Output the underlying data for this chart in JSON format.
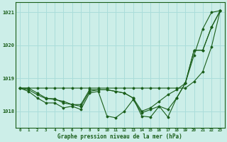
{
  "title": "Graphe pression niveau de la mer (hPa)",
  "bg_color": "#cceee8",
  "grid_color": "#aaddda",
  "line_color": "#1a5e1a",
  "xlim": [
    -0.5,
    23.5
  ],
  "ylim": [
    1017.5,
    1021.3
  ],
  "yticks": [
    1018,
    1019,
    1020,
    1021
  ],
  "xtick_labels": [
    "0",
    "1",
    "2",
    "3",
    "4",
    "5",
    "6",
    "7",
    "8",
    "9",
    "10",
    "11",
    "12",
    "13",
    "14",
    "15",
    "16",
    "17",
    "18",
    "19",
    "20",
    "21",
    "22",
    "23"
  ],
  "series": [
    [
      1018.7,
      1018.7,
      1018.55,
      1018.4,
      1018.35,
      1018.3,
      1018.2,
      1018.2,
      1018.65,
      1018.65,
      1018.65,
      1018.6,
      1018.55,
      1018.4,
      1017.85,
      1017.82,
      1018.15,
      1017.82,
      1018.4,
      1018.85,
      1019.7,
      1020.5,
      1021.0,
      1021.05
    ],
    [
      1018.7,
      1018.7,
      1018.7,
      1018.7,
      1018.7,
      1018.7,
      1018.7,
      1018.7,
      1018.7,
      1018.7,
      1018.7,
      1018.7,
      1018.7,
      1018.7,
      1018.7,
      1018.7,
      1018.7,
      1018.7,
      1018.7,
      1018.7,
      1018.9,
      1019.2,
      1019.95,
      1021.05
    ],
    [
      1018.7,
      1018.65,
      1018.5,
      1018.38,
      1018.38,
      1018.25,
      1018.2,
      1018.15,
      1018.6,
      1018.65,
      1018.65,
      1018.6,
      1018.55,
      1018.4,
      1018.0,
      1018.1,
      1018.3,
      1018.5,
      1018.65,
      1018.85,
      1019.85,
      1019.85,
      1020.55,
      1021.05
    ],
    [
      1018.7,
      1018.6,
      1018.4,
      1018.25,
      1018.25,
      1018.1,
      1018.15,
      1018.05,
      1018.55,
      1018.6,
      1017.85,
      1017.8,
      1018.0,
      1018.35,
      1017.95,
      1018.05,
      1018.15,
      1018.05,
      1018.4,
      1018.85,
      1019.85,
      1019.85,
      1020.55,
      1021.05
    ]
  ]
}
